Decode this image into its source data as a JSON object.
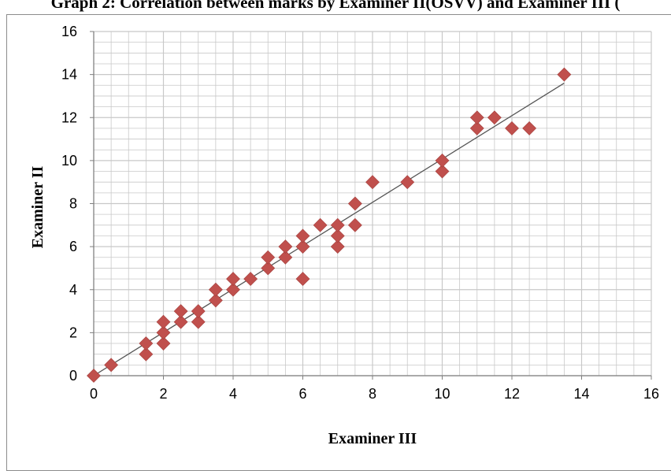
{
  "chart_data": {
    "type": "scatter",
    "title": "Graph 2: Correlation between marks by Examiner II(OSVV) and Examiner III (",
    "xlabel": "Examiner III",
    "ylabel": "Examiner II",
    "xlim": [
      0,
      16
    ],
    "ylim": [
      0,
      16
    ],
    "xticks": [
      0,
      2,
      4,
      6,
      8,
      10,
      12,
      14,
      16
    ],
    "yticks": [
      0,
      2,
      4,
      6,
      8,
      10,
      12,
      14,
      16
    ],
    "grid": true,
    "marker": "diamond",
    "colors": {
      "marker": "#c0504d",
      "trendline": "#555555",
      "grid": "#c8c8c8",
      "axis": "#7f7f7f"
    },
    "points": [
      [
        0,
        0
      ],
      [
        0.5,
        0.5
      ],
      [
        1.5,
        1
      ],
      [
        1.5,
        1.5
      ],
      [
        2,
        1.5
      ],
      [
        2,
        2
      ],
      [
        2,
        2.5
      ],
      [
        2.5,
        2.5
      ],
      [
        2.5,
        3
      ],
      [
        3,
        2.5
      ],
      [
        3,
        3
      ],
      [
        3.5,
        3.5
      ],
      [
        3.5,
        4
      ],
      [
        4,
        4
      ],
      [
        4,
        4.5
      ],
      [
        4.5,
        4.5
      ],
      [
        5,
        5
      ],
      [
        5,
        5.5
      ],
      [
        5.5,
        5.5
      ],
      [
        5.5,
        6
      ],
      [
        6,
        4.5
      ],
      [
        6,
        6
      ],
      [
        6,
        6.5
      ],
      [
        6.5,
        7
      ],
      [
        7,
        6
      ],
      [
        7,
        6.5
      ],
      [
        7,
        7
      ],
      [
        7.5,
        7
      ],
      [
        7.5,
        8
      ],
      [
        8,
        9
      ],
      [
        9,
        9
      ],
      [
        10,
        9.5
      ],
      [
        10,
        10
      ],
      [
        11,
        11.5
      ],
      [
        11,
        12
      ],
      [
        11.5,
        12
      ],
      [
        12,
        11.5
      ],
      [
        12.5,
        11.5
      ],
      [
        13.5,
        14
      ]
    ],
    "trendline": {
      "type": "linear",
      "x": [
        0,
        13.5
      ],
      "y": [
        0,
        13.6
      ]
    }
  }
}
